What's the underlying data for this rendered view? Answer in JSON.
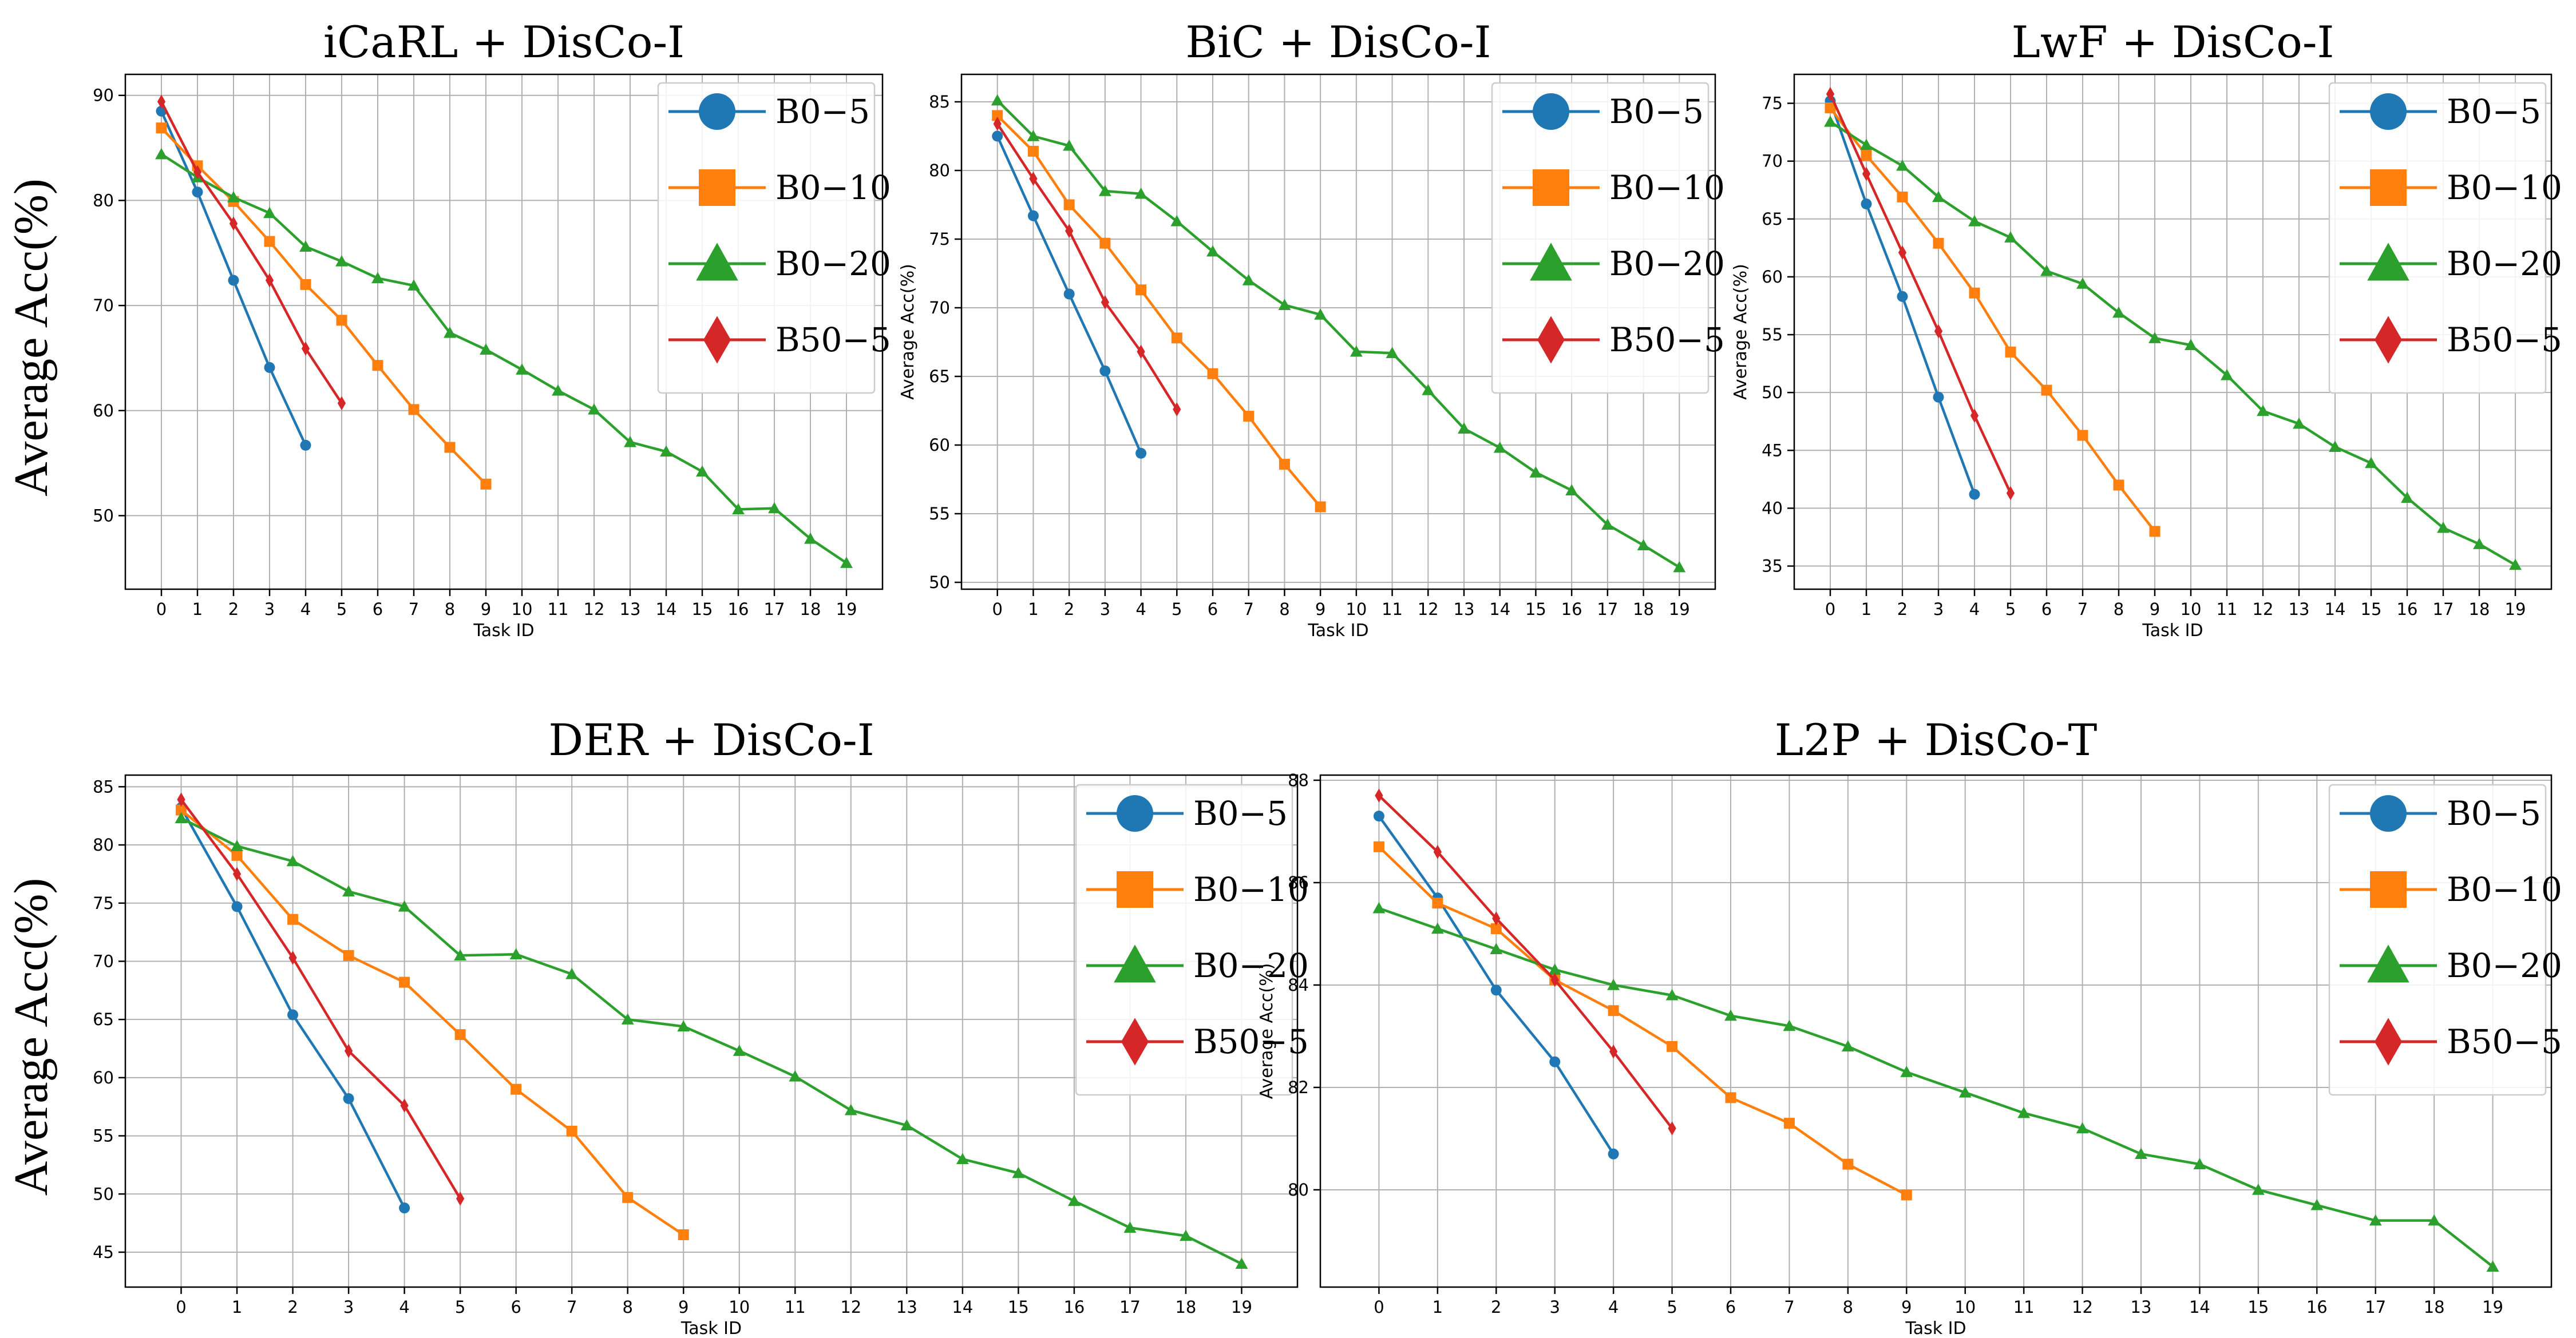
{
  "chart_data": [
    {
      "type": "line",
      "title": "iCaRL + DisCo-I",
      "xlabel": "Task ID",
      "ylabel": "Average Acc(%)",
      "ylabel_style": "large",
      "xlim": [
        -1,
        20
      ],
      "ylim": [
        43,
        92
      ],
      "yticks": [
        50,
        60,
        70,
        80,
        90
      ],
      "xticks": [
        0,
        1,
        2,
        3,
        4,
        5,
        6,
        7,
        8,
        9,
        10,
        11,
        12,
        13,
        14,
        15,
        16,
        17,
        18,
        19
      ],
      "grid": true,
      "legend": "top-right",
      "series": [
        {
          "name": "B0−5",
          "color": "#1f77b4",
          "marker": "circle",
          "x": [
            0,
            1,
            2,
            3,
            4
          ],
          "values": [
            88.5,
            80.8,
            72.4,
            64.1,
            56.7
          ]
        },
        {
          "name": "B0−10",
          "color": "#ff7f0e",
          "marker": "square",
          "x": [
            0,
            1,
            2,
            3,
            4,
            5,
            6,
            7,
            8,
            9
          ],
          "values": [
            86.9,
            83.3,
            79.9,
            76.1,
            72.0,
            68.6,
            64.3,
            60.1,
            56.5,
            53.0
          ]
        },
        {
          "name": "B0−20",
          "color": "#2ca02c",
          "marker": "triangle",
          "x": [
            0,
            1,
            2,
            3,
            4,
            5,
            6,
            7,
            8,
            9,
            10,
            11,
            12,
            13,
            14,
            15,
            16,
            17,
            18,
            19
          ],
          "values": [
            84.4,
            82.2,
            80.3,
            78.8,
            75.6,
            74.2,
            72.6,
            71.9,
            67.4,
            65.8,
            63.9,
            61.9,
            60.1,
            57.0,
            56.1,
            54.2,
            50.6,
            50.7,
            47.8,
            45.5
          ]
        },
        {
          "name": "B50−5",
          "color": "#d62728",
          "marker": "diamond",
          "x": [
            0,
            1,
            2,
            3,
            4,
            5
          ],
          "values": [
            89.4,
            82.7,
            77.8,
            72.4,
            65.9,
            60.7
          ]
        }
      ]
    },
    {
      "type": "line",
      "title": "BiC + DisCo-I",
      "xlabel": "Task ID",
      "ylabel": "Average Acc(%)",
      "ylabel_style": "small",
      "xlim": [
        -1,
        20
      ],
      "ylim": [
        49.5,
        87
      ],
      "yticks": [
        50,
        55,
        60,
        65,
        70,
        75,
        80,
        85
      ],
      "xticks": [
        0,
        1,
        2,
        3,
        4,
        5,
        6,
        7,
        8,
        9,
        10,
        11,
        12,
        13,
        14,
        15,
        16,
        17,
        18,
        19
      ],
      "grid": true,
      "legend": "top-right",
      "series": [
        {
          "name": "B0−5",
          "color": "#1f77b4",
          "marker": "circle",
          "x": [
            0,
            1,
            2,
            3,
            4
          ],
          "values": [
            82.5,
            76.7,
            71.0,
            65.4,
            59.4
          ]
        },
        {
          "name": "B0−10",
          "color": "#ff7f0e",
          "marker": "square",
          "x": [
            0,
            1,
            2,
            3,
            4,
            5,
            6,
            7,
            8,
            9
          ],
          "values": [
            84.0,
            81.4,
            77.5,
            74.7,
            71.3,
            67.8,
            65.2,
            62.1,
            58.6,
            55.5
          ]
        },
        {
          "name": "B0−20",
          "color": "#2ca02c",
          "marker": "triangle",
          "x": [
            0,
            1,
            2,
            3,
            4,
            5,
            6,
            7,
            8,
            9,
            10,
            11,
            12,
            13,
            14,
            15,
            16,
            17,
            18,
            19
          ],
          "values": [
            85.1,
            82.5,
            81.8,
            78.5,
            78.3,
            76.3,
            74.1,
            72.0,
            70.2,
            69.5,
            66.8,
            66.7,
            64.0,
            61.2,
            59.8,
            58.0,
            56.7,
            54.2,
            52.7,
            51.1
          ]
        },
        {
          "name": "B50−5",
          "color": "#d62728",
          "marker": "diamond",
          "x": [
            0,
            1,
            2,
            3,
            4,
            5
          ],
          "values": [
            83.4,
            79.4,
            75.6,
            70.4,
            66.8,
            62.6
          ]
        }
      ]
    },
    {
      "type": "line",
      "title": "LwF + DisCo-I",
      "xlabel": "Task ID",
      "ylabel": "Average Acc(%)",
      "ylabel_style": "small",
      "xlim": [
        -1,
        20
      ],
      "ylim": [
        33,
        77.5
      ],
      "yticks": [
        35,
        40,
        45,
        50,
        55,
        60,
        65,
        70,
        75
      ],
      "xticks": [
        0,
        1,
        2,
        3,
        4,
        5,
        6,
        7,
        8,
        9,
        10,
        11,
        12,
        13,
        14,
        15,
        16,
        17,
        18,
        19
      ],
      "grid": true,
      "legend": "top-right",
      "series": [
        {
          "name": "B0−5",
          "color": "#1f77b4",
          "marker": "circle",
          "x": [
            0,
            1,
            2,
            3,
            4
          ],
          "values": [
            75.2,
            66.3,
            58.3,
            49.6,
            41.2
          ]
        },
        {
          "name": "B0−10",
          "color": "#ff7f0e",
          "marker": "square",
          "x": [
            0,
            1,
            2,
            3,
            4,
            5,
            6,
            7,
            8,
            9
          ],
          "values": [
            74.6,
            70.5,
            66.9,
            62.9,
            58.6,
            53.5,
            50.2,
            46.3,
            42.0,
            38.0
          ]
        },
        {
          "name": "B0−20",
          "color": "#2ca02c",
          "marker": "triangle",
          "x": [
            0,
            1,
            2,
            3,
            4,
            5,
            6,
            7,
            8,
            9,
            10,
            11,
            12,
            13,
            14,
            15,
            16,
            17,
            18,
            19
          ],
          "values": [
            73.4,
            71.4,
            69.6,
            66.9,
            64.8,
            63.4,
            60.5,
            59.4,
            56.9,
            54.7,
            54.1,
            51.5,
            48.4,
            47.3,
            45.3,
            43.9,
            40.9,
            38.3,
            36.9,
            35.1
          ]
        },
        {
          "name": "B50−5",
          "color": "#d62728",
          "marker": "diamond",
          "x": [
            0,
            1,
            2,
            3,
            4,
            5
          ],
          "values": [
            75.8,
            68.9,
            62.1,
            55.3,
            48.0,
            41.3
          ]
        }
      ]
    },
    {
      "type": "line",
      "title": "DER + DisCo-I",
      "xlabel": "Task ID",
      "ylabel": "Average Acc(%)",
      "ylabel_style": "large",
      "xlim": [
        -1,
        20
      ],
      "ylim": [
        42,
        86
      ],
      "yticks": [
        45,
        50,
        55,
        60,
        65,
        70,
        75,
        80,
        85
      ],
      "xticks": [
        0,
        1,
        2,
        3,
        4,
        5,
        6,
        7,
        8,
        9,
        10,
        11,
        12,
        13,
        14,
        15,
        16,
        17,
        18,
        19
      ],
      "grid": true,
      "legend": "top-right",
      "series": [
        {
          "name": "B0−5",
          "color": "#1f77b4",
          "marker": "circle",
          "x": [
            0,
            1,
            2,
            3,
            4
          ],
          "values": [
            83.2,
            74.7,
            65.4,
            58.2,
            48.8
          ]
        },
        {
          "name": "B0−10",
          "color": "#ff7f0e",
          "marker": "square",
          "x": [
            0,
            1,
            2,
            3,
            4,
            5,
            6,
            7,
            8,
            9
          ],
          "values": [
            83.0,
            79.1,
            73.6,
            70.5,
            68.2,
            63.7,
            59.0,
            55.4,
            49.7,
            46.5
          ]
        },
        {
          "name": "B0−20",
          "color": "#2ca02c",
          "marker": "triangle",
          "x": [
            0,
            1,
            2,
            3,
            4,
            5,
            6,
            7,
            8,
            9,
            10,
            11,
            12,
            13,
            14,
            15,
            16,
            17,
            18,
            19
          ],
          "values": [
            82.3,
            79.9,
            78.6,
            76.0,
            74.7,
            70.5,
            70.6,
            68.9,
            65.0,
            64.4,
            62.3,
            60.1,
            57.2,
            55.9,
            53.0,
            51.8,
            49.4,
            47.1,
            46.4,
            44.0
          ]
        },
        {
          "name": "B50−5",
          "color": "#d62728",
          "marker": "diamond",
          "x": [
            0,
            1,
            2,
            3,
            4,
            5
          ],
          "values": [
            83.9,
            77.5,
            70.3,
            62.3,
            57.6,
            49.6
          ]
        }
      ]
    },
    {
      "type": "line",
      "title": "L2P + DisCo-T",
      "xlabel": "Task ID",
      "ylabel": "Average Acc(%)",
      "ylabel_style": "small",
      "xlim": [
        -1,
        20
      ],
      "ylim": [
        78.1,
        88.1
      ],
      "yticks": [
        80,
        82,
        84,
        86,
        88
      ],
      "xticks": [
        0,
        1,
        2,
        3,
        4,
        5,
        6,
        7,
        8,
        9,
        10,
        11,
        12,
        13,
        14,
        15,
        16,
        17,
        18,
        19
      ],
      "grid": true,
      "legend": "top-right",
      "series": [
        {
          "name": "B0−5",
          "color": "#1f77b4",
          "marker": "circle",
          "x": [
            0,
            1,
            2,
            3,
            4
          ],
          "values": [
            87.3,
            85.7,
            83.9,
            82.5,
            80.7
          ]
        },
        {
          "name": "B0−10",
          "color": "#ff7f0e",
          "marker": "square",
          "x": [
            0,
            1,
            2,
            3,
            4,
            5,
            6,
            7,
            8,
            9
          ],
          "values": [
            86.7,
            85.6,
            85.1,
            84.1,
            83.5,
            82.8,
            81.8,
            81.3,
            80.5,
            79.9
          ]
        },
        {
          "name": "B0−20",
          "color": "#2ca02c",
          "marker": "triangle",
          "x": [
            0,
            1,
            2,
            3,
            4,
            5,
            6,
            7,
            8,
            9,
            10,
            11,
            12,
            13,
            14,
            15,
            16,
            17,
            18,
            19
          ],
          "values": [
            85.5,
            85.1,
            84.7,
            84.3,
            84.0,
            83.8,
            83.4,
            83.2,
            82.8,
            82.3,
            81.9,
            81.5,
            81.2,
            80.7,
            80.5,
            80.0,
            79.7,
            79.4,
            79.4,
            78.5
          ]
        },
        {
          "name": "B50−5",
          "color": "#d62728",
          "marker": "diamond",
          "x": [
            0,
            1,
            2,
            3,
            4,
            5
          ],
          "values": [
            87.7,
            86.6,
            85.3,
            84.1,
            82.7,
            81.2
          ]
        }
      ]
    }
  ]
}
